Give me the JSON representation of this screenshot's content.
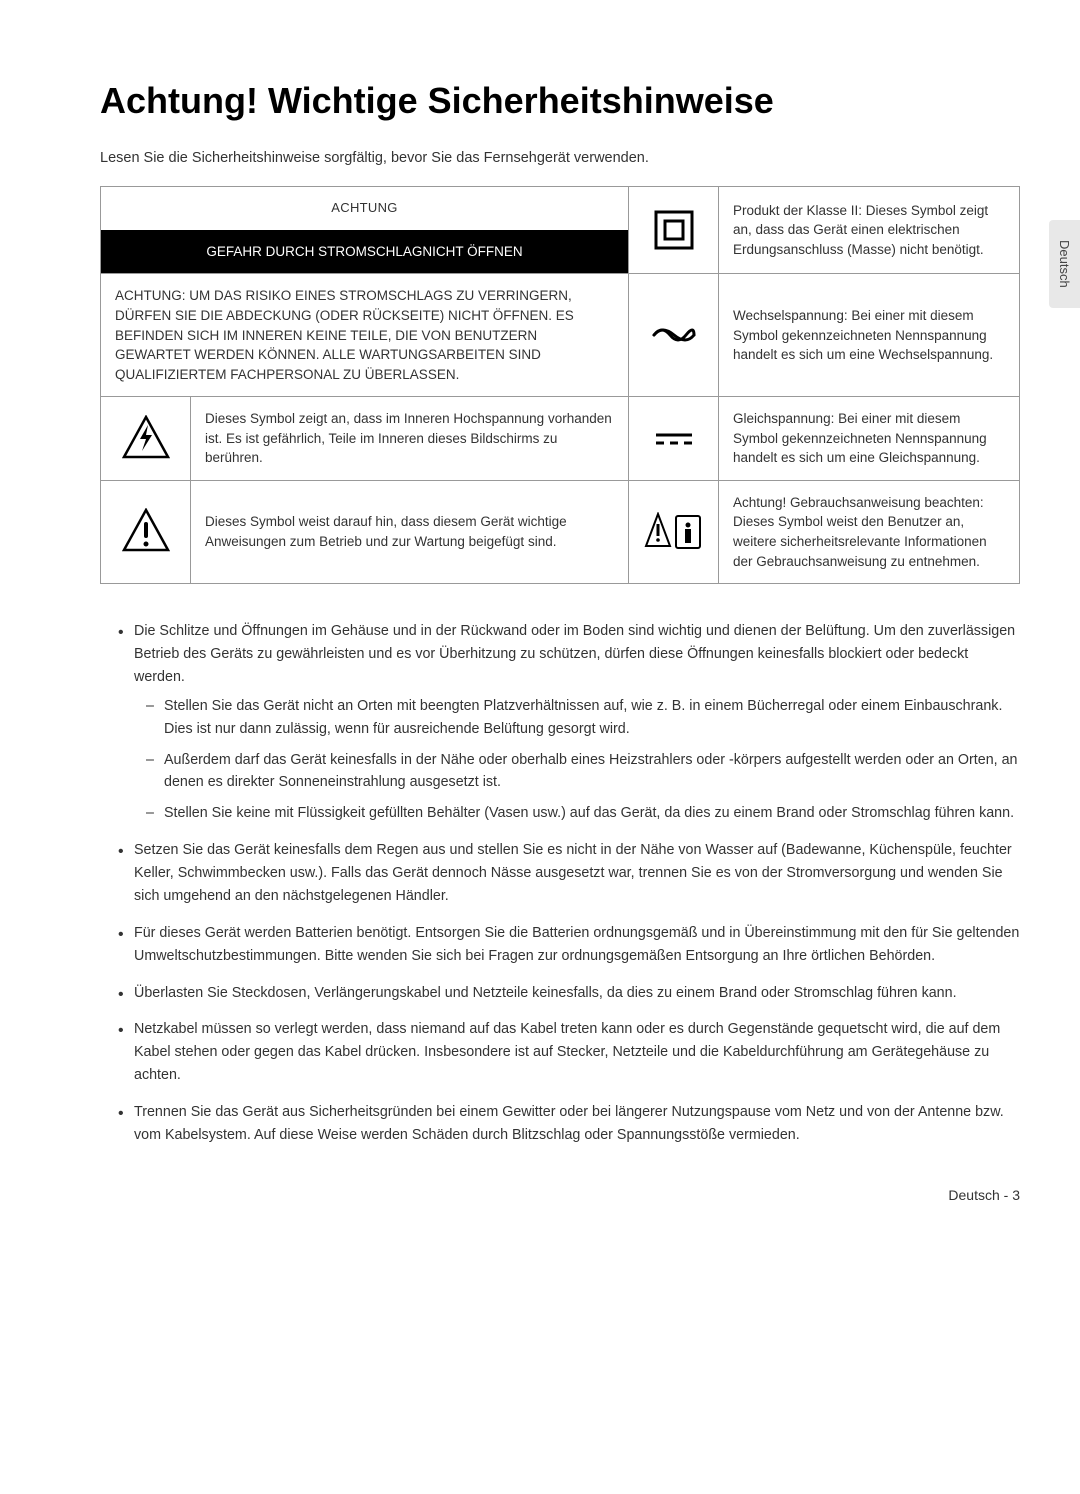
{
  "title": "Achtung! Wichtige Sicherheitshinweise",
  "intro": "Lesen Sie die Sicherheitshinweise sorgfältig, bevor Sie das Fernsehgerät verwenden.",
  "side_tab": "Deutsch",
  "table": {
    "header1": "ACHTUNG",
    "header2": "GEFAHR DURCH STROMSCHLAGNICHT ÖFFNEN",
    "class2": "Produkt der Klasse II: Dieses Symbol zeigt an, dass das Gerät einen elektrischen Erdungsanschluss (Masse) nicht benötigt.",
    "big_warning": "ACHTUNG: UM DAS RISIKO EINES STROMSCHLAGS ZU VERRINGERN, DÜRFEN SIE DIE ABDECKUNG (ODER RÜCKSEITE) NICHT ÖFFNEN. ES BEFINDEN SICH IM INNEREN KEINE TEILE, DIE VON BENUTZERN GEWARTET WERDEN KÖNNEN. ALLE WARTUNGSARBEITEN SIND QUALIFIZIERTEM FACHPERSONAL ZU ÜBERLASSEN.",
    "ac": "Wechselspannung: Bei einer mit diesem Symbol gekennzeichneten Nennspannung handelt es sich um eine Wechselspannung.",
    "bolt": "Dieses Symbol zeigt an, dass im Inneren Hochspannung vorhanden ist. Es ist gefährlich, Teile im Inneren dieses Bildschirms zu berühren.",
    "dc": "Gleichspannung: Bei einer mit diesem Symbol gekennzeichneten Nennspannung handelt es sich um eine Gleichspannung.",
    "excl": "Dieses Symbol weist darauf hin, dass diesem Gerät wichtige Anweisungen zum Betrieb und zur Wartung beigefügt sind.",
    "manual": "Achtung! Gebrauchsanweisung beachten: Dieses Symbol weist den Benutzer an, weitere sicherheitsrelevante Informationen der Gebrauchsanweisung zu entnehmen."
  },
  "bullets": [
    {
      "text": "Die Schlitze und Öffnungen im Gehäuse und in der Rückwand oder im Boden sind wichtig und dienen der Belüftung. Um den zuverlässigen Betrieb des Geräts zu gewährleisten und es vor Überhitzung zu schützen, dürfen diese Öffnungen keinesfalls blockiert oder bedeckt werden.",
      "subs": [
        "Stellen Sie das Gerät nicht an Orten mit beengten Platzverhältnissen auf, wie z. B. in einem Bücherregal oder einem Einbauschrank. Dies ist nur dann zulässig, wenn für ausreichende Belüftung gesorgt wird.",
        "Außerdem darf das Gerät keinesfalls in der Nähe oder oberhalb eines Heizstrahlers oder -körpers aufgestellt werden oder an Orten, an denen es direkter Sonneneinstrahlung ausgesetzt ist.",
        "Stellen Sie keine mit Flüssigkeit gefüllten Behälter (Vasen usw.) auf das Gerät, da dies zu einem Brand oder Stromschlag führen kann."
      ]
    },
    {
      "text": "Setzen Sie das Gerät keinesfalls dem Regen aus und stellen Sie es nicht in der Nähe von Wasser auf (Badewanne, Küchenspüle, feuchter Keller, Schwimmbecken usw.). Falls das Gerät dennoch Nässe ausgesetzt war, trennen Sie es von der Stromversorgung und wenden Sie sich umgehend an den nächstgelegenen Händler."
    },
    {
      "text": "Für dieses Gerät werden Batterien benötigt. Entsorgen Sie die Batterien ordnungsgemäß und in Übereinstimmung mit den für Sie geltenden Umweltschutzbestimmungen. Bitte wenden Sie sich bei Fragen zur ordnungsgemäßen Entsorgung an Ihre örtlichen Behörden."
    },
    {
      "text": "Überlasten Sie Steckdosen, Verlängerungskabel und Netzteile keinesfalls, da dies zu einem Brand oder Stromschlag führen kann."
    },
    {
      "text": "Netzkabel müssen so verlegt werden, dass niemand auf das Kabel treten kann oder es durch Gegenstände gequetscht wird, die auf dem Kabel stehen oder gegen das Kabel drücken. Insbesondere ist auf Stecker, Netzteile und die Kabeldurchführung am Gerätegehäuse zu achten."
    },
    {
      "text": "Trennen Sie das Gerät aus Sicherheitsgründen bei einem Gewitter oder bei längerer Nutzungspause vom Netz und von der Antenne bzw. vom Kabelsystem. Auf diese Weise werden Schäden durch Blitzschlag oder Spannungsstöße vermieden."
    }
  ],
  "footer": "Deutsch - 3"
}
